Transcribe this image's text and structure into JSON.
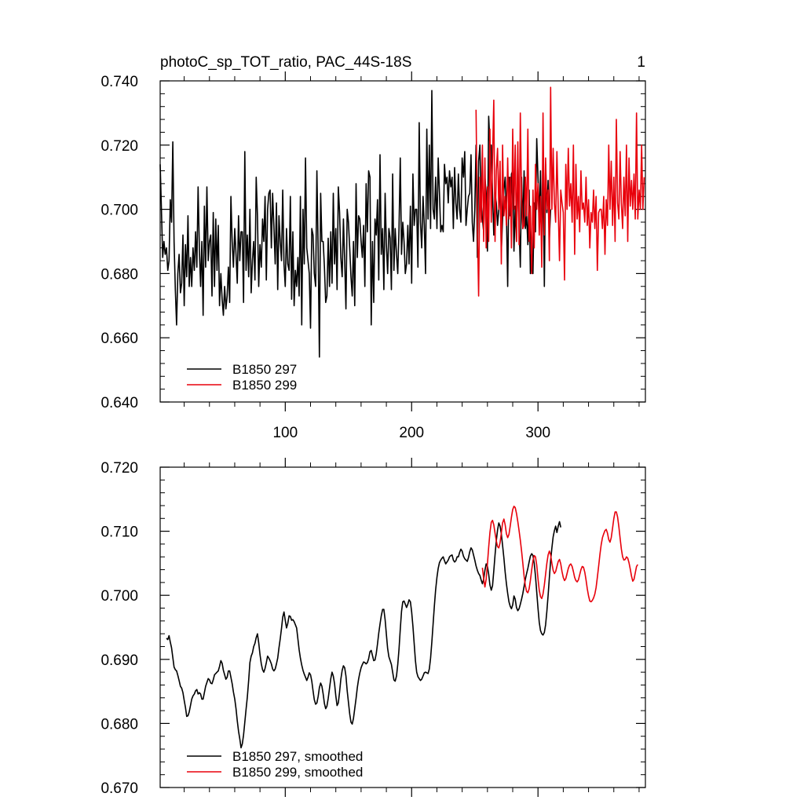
{
  "chart_data": [
    {
      "type": "line",
      "title": "photoC_sp_TOT_ratio, PAC_44S-18S",
      "corner_label": "1",
      "xlim": [
        1,
        385
      ],
      "ylim": [
        0.64,
        0.74
      ],
      "yticks": [
        "0.640",
        "0.660",
        "0.680",
        "0.700",
        "0.720",
        "0.740"
      ],
      "xticks": [
        "100",
        "200",
        "300"
      ],
      "legend_position": "bottom-left",
      "series": [
        {
          "name": "B1850 297",
          "color": "#000000",
          "x_start": 1,
          "values": [
            0.714,
            0.7,
            0.685,
            0.69,
            0.686,
            0.688,
            0.681,
            0.684,
            0.703,
            0.696,
            0.721,
            0.69,
            0.675,
            0.664,
            0.68,
            0.686,
            0.674,
            0.677,
            0.692,
            0.67,
            0.689,
            0.679,
            0.698,
            0.676,
            0.685,
            0.676,
            0.688,
            0.681,
            0.693,
            0.682,
            0.707,
            0.688,
            0.676,
            0.69,
            0.667,
            0.701,
            0.682,
            0.707,
            0.684,
            0.69,
            0.692,
            0.673,
            0.699,
            0.676,
            0.697,
            0.681,
            0.695,
            0.67,
            0.68,
            0.672,
            0.667,
            0.676,
            0.669,
            0.673,
            0.682,
            0.671,
            0.704,
            0.69,
            0.682,
            0.694,
            0.686,
            0.677,
            0.698,
            0.684,
            0.693,
            0.693,
            0.671,
            0.718,
            0.681,
            0.692,
            0.679,
            0.7,
            0.674,
            0.684,
            0.69,
            0.678,
            0.71,
            0.698,
            0.676,
            0.689,
            0.682,
            0.697,
            0.69,
            0.704,
            0.678,
            0.7,
            0.705,
            0.706,
            0.688,
            0.705,
            0.695,
            0.683,
            0.702,
            0.675,
            0.698,
            0.69,
            0.684,
            0.706,
            0.683,
            0.676,
            0.694,
            0.683,
            0.681,
            0.704,
            0.672,
            0.693,
            0.67,
            0.681,
            0.676,
            0.685,
            0.673,
            0.704,
            0.664,
            0.7,
            0.683,
            0.716,
            0.688,
            0.684,
            0.68,
            0.663,
            0.694,
            0.692,
            0.68,
            0.676,
            0.712,
            0.688,
            0.654,
            0.705,
            0.69,
            0.69,
            0.682,
            0.671,
            0.673,
            0.691,
            0.676,
            0.693,
            0.677,
            0.705,
            0.683,
            0.694,
            0.675,
            0.707,
            0.699,
            0.685,
            0.679,
            0.697,
            0.684,
            0.669,
            0.7,
            0.696,
            0.688,
            0.679,
            0.673,
            0.69,
            0.67,
            0.708,
            0.685,
            0.698,
            0.697,
            0.69,
            0.685,
            0.695,
            0.676,
            0.708,
            0.693,
            0.712,
            0.71,
            0.664,
            0.69,
            0.671,
            0.697,
            0.692,
            0.703,
            0.678,
            0.717,
            0.686,
            0.694,
            0.675,
            0.705,
            0.689,
            0.68,
            0.694,
            0.691,
            0.675,
            0.711,
            0.681,
            0.694,
            0.686,
            0.68,
            0.694,
            0.716,
            0.686,
            0.696,
            0.69,
            0.68,
            0.683,
            0.695,
            0.683,
            0.701,
            0.677,
            0.711,
            0.695,
            0.7,
            0.7,
            0.682,
            0.727,
            0.696,
            0.688,
            0.704,
            0.695,
            0.68,
            0.725,
            0.697,
            0.72,
            0.694,
            0.737,
            0.7,
            0.697,
            0.71,
            0.694,
            0.716,
            0.705,
            0.693,
            0.695,
            0.693,
            0.714,
            0.708,
            0.71,
            0.702,
            0.712,
            0.707,
            0.71,
            0.694,
            0.713,
            0.702,
            0.697,
            0.711,
            0.7,
            0.696,
            0.716,
            0.71,
            0.718,
            0.695,
            0.7,
            0.704,
            0.705,
            0.717,
            0.696,
            0.69,
            0.7,
            0.72,
            0.685,
            0.715,
            0.72,
            0.702,
            0.697,
            0.693,
            0.71,
            0.705,
            0.687,
            0.729,
            0.72,
            0.72,
            0.705,
            0.692,
            0.705,
            0.702,
            0.695,
            0.7,
            0.709,
            0.687,
            0.697,
            0.706,
            0.71,
            0.699,
            0.676,
            0.71,
            0.698,
            0.711,
            0.712,
            0.687,
            0.701,
            0.69,
            0.716,
            0.695,
            0.682,
            0.71,
            0.694,
            0.712,
            0.694,
            0.698,
            0.689,
            0.706,
            0.68,
            0.688,
            0.68,
            0.702,
            0.693,
            0.722,
            0.71,
            0.697,
            0.712,
            0.688,
            0.713,
            0.676,
            0.714,
            0.699,
            0.709,
            0.691,
            0.7
          ]
        },
        {
          "name": "B1850 299",
          "color": "#e8000b",
          "x_start": 251,
          "values": [
            0.731,
            0.695,
            0.673,
            0.71,
            0.696,
            0.72,
            0.69,
            0.716,
            0.688,
            0.707,
            0.69,
            0.725,
            0.696,
            0.716,
            0.734,
            0.69,
            0.712,
            0.719,
            0.7,
            0.715,
            0.683,
            0.72,
            0.698,
            0.704,
            0.695,
            0.716,
            0.697,
            0.71,
            0.688,
            0.725,
            0.7,
            0.72,
            0.69,
            0.721,
            0.689,
            0.73,
            0.703,
            0.694,
            0.695,
            0.71,
            0.698,
            0.725,
            0.69,
            0.701,
            0.68,
            0.706,
            0.688,
            0.714,
            0.7,
            0.708,
            0.692,
            0.704,
            0.682,
            0.73,
            0.692,
            0.716,
            0.7,
            0.706,
            0.684,
            0.738,
            0.7,
            0.719,
            0.702,
            0.696,
            0.718,
            0.7,
            0.684,
            0.706,
            0.702,
            0.699,
            0.678,
            0.714,
            0.7,
            0.719,
            0.701,
            0.708,
            0.696,
            0.72,
            0.686,
            0.714,
            0.697,
            0.704,
            0.693,
            0.712,
            0.7,
            0.702,
            0.696,
            0.71,
            0.695,
            0.703,
            0.688,
            0.699,
            0.696,
            0.706,
            0.694,
            0.704,
            0.681,
            0.699,
            0.7,
            0.7,
            0.694,
            0.704,
            0.686,
            0.703,
            0.695,
            0.72,
            0.7,
            0.715,
            0.695,
            0.71,
            0.69,
            0.728,
            0.702,
            0.697,
            0.718,
            0.702,
            0.694,
            0.71,
            0.698,
            0.72,
            0.69,
            0.716,
            0.701,
            0.709,
            0.7,
            0.711,
            0.697,
            0.73,
            0.697,
            0.706,
            0.7,
            0.72,
            0.7,
            0.71
          ]
        }
      ]
    },
    {
      "type": "line",
      "title": "",
      "xlim": [
        1,
        385
      ],
      "ylim": [
        0.67,
        0.72
      ],
      "yticks": [
        "0.670",
        "0.680",
        "0.690",
        "0.700",
        "0.710",
        "0.720"
      ],
      "xticks": [],
      "legend_position": "bottom-left",
      "series": [
        {
          "name": "B1850 297, smoothed",
          "color": "#000000",
          "x_start": 6,
          "values": [
            0.6933,
            0.6931,
            0.6937,
            0.6927,
            0.6918,
            0.6903,
            0.6888,
            0.6884,
            0.6882,
            0.6875,
            0.6867,
            0.6858,
            0.6855,
            0.6848,
            0.6836,
            0.6825,
            0.6811,
            0.6812,
            0.6818,
            0.6828,
            0.6838,
            0.6843,
            0.6846,
            0.6851,
            0.6853,
            0.6846,
            0.6848,
            0.6846,
            0.6838,
            0.6838,
            0.6848,
            0.6858,
            0.6864,
            0.687,
            0.6868,
            0.6863,
            0.6862,
            0.6868,
            0.6876,
            0.6878,
            0.688,
            0.6882,
            0.6889,
            0.6898,
            0.6894,
            0.6883,
            0.6876,
            0.6869,
            0.6872,
            0.6882,
            0.6882,
            0.6872,
            0.6862,
            0.6849,
            0.6838,
            0.6823,
            0.6804,
            0.6788,
            0.6776,
            0.6762,
            0.6768,
            0.6782,
            0.6802,
            0.6822,
            0.6841,
            0.6867,
            0.6895,
            0.6905,
            0.691,
            0.692,
            0.6925,
            0.6934,
            0.694,
            0.6926,
            0.6908,
            0.6893,
            0.6884,
            0.688,
            0.6886,
            0.6895,
            0.6905,
            0.6902,
            0.6898,
            0.6893,
            0.6885,
            0.6882,
            0.6885,
            0.6893,
            0.6902,
            0.6918,
            0.6932,
            0.6948,
            0.6966,
            0.6974,
            0.6961,
            0.6949,
            0.6956,
            0.6968,
            0.6967,
            0.6961,
            0.6962,
            0.6959,
            0.6954,
            0.6949,
            0.6932,
            0.6915,
            0.6902,
            0.6891,
            0.6883,
            0.6877,
            0.6872,
            0.6867,
            0.6872,
            0.6879,
            0.6876,
            0.6866,
            0.6851,
            0.6837,
            0.683,
            0.6832,
            0.6842,
            0.6856,
            0.6863,
            0.6858,
            0.6846,
            0.6831,
            0.6823,
            0.6827,
            0.6839,
            0.6855,
            0.687,
            0.688,
            0.6874,
            0.6862,
            0.6843,
            0.6828,
            0.6832,
            0.6849,
            0.6869,
            0.6883,
            0.689,
            0.6887,
            0.6874,
            0.6851,
            0.6833,
            0.6815,
            0.6802,
            0.6799,
            0.6808,
            0.6823,
            0.6839,
            0.6856,
            0.6869,
            0.6879,
            0.6887,
            0.6892,
            0.6896,
            0.6895,
            0.6893,
            0.6895,
            0.6901,
            0.6912,
            0.6914,
            0.6906,
            0.6898,
            0.6899,
            0.6909,
            0.6924,
            0.6941,
            0.6955,
            0.6968,
            0.6978,
            0.6978,
            0.6962,
            0.6939,
            0.6917,
            0.6904,
            0.6898,
            0.6892,
            0.688,
            0.6868,
            0.6866,
            0.6874,
            0.6892,
            0.6916,
            0.6947,
            0.6975,
            0.699,
            0.6991,
            0.6986,
            0.6981,
            0.6986,
            0.6993,
            0.699,
            0.6974,
            0.6952,
            0.6925,
            0.6898,
            0.688,
            0.6873,
            0.687,
            0.6867,
            0.6869,
            0.6874,
            0.6879,
            0.688,
            0.6879,
            0.6878,
            0.6885,
            0.6902,
            0.6927,
            0.6955,
            0.6983,
            0.7008,
            0.7028,
            0.7042,
            0.7051,
            0.7055,
            0.7058,
            0.706,
            0.7054,
            0.7049,
            0.7052,
            0.7055,
            0.706,
            0.7062,
            0.7063,
            0.7055,
            0.7052,
            0.7054,
            0.706,
            0.706,
            0.7067,
            0.7072,
            0.7069,
            0.7061,
            0.7057,
            0.7055,
            0.7053,
            0.7059,
            0.7068,
            0.7074,
            0.7071,
            0.7063,
            0.7055,
            0.7046,
            0.7039,
            0.7034,
            0.7031,
            0.7024,
            0.7018,
            0.7025,
            0.7039,
            0.7049,
            0.7045,
            0.7033,
            0.7016,
            0.7008,
            0.7015,
            0.7038,
            0.7063,
            0.7085,
            0.7102,
            0.7113,
            0.7108,
            0.7096,
            0.7078,
            0.7058,
            0.7036,
            0.7018,
            0.7003,
            0.699,
            0.6983,
            0.6979,
            0.6985,
            0.6999,
            0.6994,
            0.6981,
            0.6976,
            0.6979,
            0.6986,
            0.6994,
            0.7003,
            0.7014,
            0.7025,
            0.7034,
            0.7042,
            0.7052,
            0.7061,
            0.7065,
            0.7062,
            0.705,
            0.703,
            0.7005,
            0.698,
            0.6958,
            0.6945,
            0.694,
            0.6938,
            0.6942,
            0.6954,
            0.6975,
            0.7,
            0.7028,
            0.7054,
            0.7074,
            0.7091,
            0.7101,
            0.7108,
            0.7098,
            0.7108,
            0.7115,
            0.7106
          ]
        },
        {
          "name": "B1850 299, smoothed",
          "color": "#e8000b",
          "x_start": 256,
          "values": [
            0.7043,
            0.7026,
            0.7013,
            0.7025,
            0.7049,
            0.7075,
            0.7098,
            0.7114,
            0.7117,
            0.711,
            0.7097,
            0.7085,
            0.7076,
            0.7074,
            0.7082,
            0.7097,
            0.7113,
            0.7119,
            0.711,
            0.7096,
            0.709,
            0.7095,
            0.7108,
            0.7122,
            0.7134,
            0.7139,
            0.7137,
            0.7128,
            0.7115,
            0.7101,
            0.7086,
            0.7069,
            0.705,
            0.703,
            0.7015,
            0.7006,
            0.7004,
            0.701,
            0.7023,
            0.704,
            0.7054,
            0.7062,
            0.706,
            0.7047,
            0.7026,
            0.7008,
            0.6998,
            0.6995,
            0.7002,
            0.7016,
            0.7033,
            0.705,
            0.7063,
            0.7069,
            0.7063,
            0.705,
            0.7039,
            0.7034,
            0.7037,
            0.7045,
            0.7053,
            0.7056,
            0.7049,
            0.7037,
            0.7028,
            0.7023,
            0.7026,
            0.7034,
            0.7042,
            0.7047,
            0.7049,
            0.7045,
            0.7037,
            0.7028,
            0.7023,
            0.7021,
            0.7024,
            0.7032,
            0.704,
            0.7045,
            0.7044,
            0.7036,
            0.7024,
            0.701,
            0.6999,
            0.6991,
            0.699,
            0.6992,
            0.6996,
            0.7002,
            0.7012,
            0.7028,
            0.7046,
            0.7064,
            0.7079,
            0.709,
            0.7096,
            0.7101,
            0.7103,
            0.7097,
            0.7087,
            0.7083,
            0.709,
            0.7105,
            0.712,
            0.713,
            0.713,
            0.7122,
            0.7107,
            0.7089,
            0.7072,
            0.706,
            0.7055,
            0.7056,
            0.706,
            0.7058,
            0.7051,
            0.7041,
            0.703,
            0.7022,
            0.7025,
            0.7035,
            0.7045,
            0.7048
          ]
        }
      ]
    }
  ]
}
